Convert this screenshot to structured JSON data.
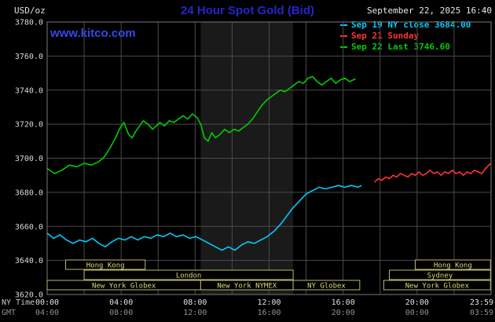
{
  "header": {
    "units_label": "USD/oz",
    "title": "24 Hour Spot Gold (Bid)",
    "title_color": "#2525cc",
    "datetime": "September 22, 2025 16:40",
    "watermark": "www.kitco.com",
    "watermark_color": "#3448ee"
  },
  "legend": {
    "items": [
      {
        "label": "Sep 19 NY close 3684.00",
        "color": "#00ccff"
      },
      {
        "label": "Sep 21 Sunday",
        "color": "#ff3232"
      },
      {
        "label": "Sep 22 Last 3746.60",
        "color": "#00cc00"
      }
    ]
  },
  "axis_captions": {
    "ny": "NY Time",
    "gmt": "GMT"
  },
  "chart_data": {
    "type": "line",
    "title": "24 Hour Spot Gold (Bid)",
    "ylabel": "USD/oz",
    "ylim": [
      3620,
      3780
    ],
    "y_tick_step": 20,
    "y_tick_format_decimals": 1,
    "xlim_hours": [
      0,
      24
    ],
    "grid": true,
    "grid_color": "#4a4a4a",
    "frame_color": "#7a7a7a",
    "tick_color": "#d9d9d9",
    "x_tick_color_ny": "#e0e0e0",
    "x_tick_color_gmt": "#8f8f8f",
    "session_border_color": "#b9b96e",
    "session_text_color": "#d8d883",
    "band": {
      "start": 8.3,
      "end": 13.3,
      "color": "#1a1a1a"
    },
    "x_ticks": [
      {
        "h": 0,
        "ny": "00:00",
        "gmt": "04:00"
      },
      {
        "h": 4,
        "ny": "04:00",
        "gmt": "08:00"
      },
      {
        "h": 8,
        "ny": "08:00",
        "gmt": "12:00"
      },
      {
        "h": 12,
        "ny": "12:00",
        "gmt": "16:00"
      },
      {
        "h": 16,
        "ny": "16:00",
        "gmt": "20:00"
      },
      {
        "h": 20,
        "ny": "20:00",
        "gmt": "00:00"
      },
      {
        "h": 23.983,
        "ny": "23:59",
        "gmt": "03:59"
      }
    ],
    "sessions": [
      {
        "row": 1,
        "start": 1.0,
        "end": 5.3,
        "label": "Hong Kong"
      },
      {
        "row": 1,
        "start": 19.9,
        "end": 23.97,
        "label": "Hong Kong"
      },
      {
        "row": 2,
        "start": 2.0,
        "end": 13.3,
        "label": "London"
      },
      {
        "row": 2,
        "start": 18.5,
        "end": 23.97,
        "label": "Sydney"
      },
      {
        "row": 3,
        "start": 0.0,
        "end": 8.3,
        "label": "New York Globex"
      },
      {
        "row": 3,
        "start": 8.3,
        "end": 13.3,
        "label": "New York NYMEX"
      },
      {
        "row": 3,
        "start": 13.3,
        "end": 16.9,
        "label": "NY Globex"
      },
      {
        "row": 3,
        "start": 18.2,
        "end": 23.97,
        "label": "New York Globex"
      }
    ],
    "series": [
      {
        "name": "Sep 19 NY close",
        "color": "#00ccff",
        "points": [
          [
            0,
            3656
          ],
          [
            0.35,
            3653
          ],
          [
            0.7,
            3655
          ],
          [
            1.05,
            3652
          ],
          [
            1.4,
            3650
          ],
          [
            1.75,
            3652
          ],
          [
            2.1,
            3651
          ],
          [
            2.45,
            3653
          ],
          [
            2.8,
            3650
          ],
          [
            3.15,
            3648
          ],
          [
            3.5,
            3651
          ],
          [
            3.85,
            3653
          ],
          [
            4.2,
            3652
          ],
          [
            4.55,
            3654
          ],
          [
            4.9,
            3652
          ],
          [
            5.25,
            3654
          ],
          [
            5.6,
            3653
          ],
          [
            5.95,
            3655
          ],
          [
            6.3,
            3654
          ],
          [
            6.65,
            3656
          ],
          [
            7.0,
            3654
          ],
          [
            7.35,
            3655
          ],
          [
            7.7,
            3653
          ],
          [
            8.05,
            3654
          ],
          [
            8.4,
            3652
          ],
          [
            8.75,
            3650
          ],
          [
            9.1,
            3648
          ],
          [
            9.45,
            3646
          ],
          [
            9.8,
            3648
          ],
          [
            10.15,
            3646
          ],
          [
            10.5,
            3649
          ],
          [
            10.85,
            3651
          ],
          [
            11.2,
            3650
          ],
          [
            11.55,
            3652
          ],
          [
            11.9,
            3654
          ],
          [
            12.25,
            3657
          ],
          [
            12.6,
            3661
          ],
          [
            12.95,
            3666
          ],
          [
            13.3,
            3671
          ],
          [
            13.65,
            3675
          ],
          [
            14.0,
            3679
          ],
          [
            14.35,
            3681
          ],
          [
            14.7,
            3683
          ],
          [
            15.05,
            3682
          ],
          [
            15.4,
            3683
          ],
          [
            15.75,
            3684
          ],
          [
            16.1,
            3683
          ],
          [
            16.45,
            3684
          ],
          [
            16.8,
            3683
          ],
          [
            17.0,
            3684
          ]
        ]
      },
      {
        "name": "Sep 21 Sunday",
        "color": "#ff3232",
        "points": [
          [
            17.7,
            3686
          ],
          [
            17.9,
            3688
          ],
          [
            18.1,
            3687
          ],
          [
            18.3,
            3689
          ],
          [
            18.5,
            3688
          ],
          [
            18.7,
            3690
          ],
          [
            18.9,
            3689
          ],
          [
            19.1,
            3691
          ],
          [
            19.3,
            3690
          ],
          [
            19.5,
            3689
          ],
          [
            19.7,
            3691
          ],
          [
            19.9,
            3690
          ],
          [
            20.1,
            3692
          ],
          [
            20.3,
            3690
          ],
          [
            20.5,
            3691
          ],
          [
            20.7,
            3693
          ],
          [
            20.9,
            3691
          ],
          [
            21.1,
            3692
          ],
          [
            21.3,
            3690
          ],
          [
            21.5,
            3692
          ],
          [
            21.7,
            3691
          ],
          [
            21.9,
            3693
          ],
          [
            22.1,
            3691
          ],
          [
            22.3,
            3692
          ],
          [
            22.5,
            3690
          ],
          [
            22.7,
            3692
          ],
          [
            22.9,
            3691
          ],
          [
            23.1,
            3693
          ],
          [
            23.3,
            3692
          ],
          [
            23.5,
            3691
          ],
          [
            23.7,
            3694
          ],
          [
            23.98,
            3697
          ]
        ]
      },
      {
        "name": "Sep 22 Last",
        "color": "#00cc00",
        "points": [
          [
            0,
            3694
          ],
          [
            0.4,
            3691
          ],
          [
            0.8,
            3693
          ],
          [
            1.2,
            3696
          ],
          [
            1.6,
            3695
          ],
          [
            2.0,
            3697
          ],
          [
            2.4,
            3696
          ],
          [
            2.8,
            3698
          ],
          [
            3.1,
            3701
          ],
          [
            3.4,
            3706
          ],
          [
            3.7,
            3712
          ],
          [
            3.95,
            3718
          ],
          [
            4.15,
            3721
          ],
          [
            4.4,
            3714
          ],
          [
            4.6,
            3712
          ],
          [
            4.8,
            3716
          ],
          [
            5.0,
            3719
          ],
          [
            5.2,
            3722
          ],
          [
            5.45,
            3720
          ],
          [
            5.7,
            3717
          ],
          [
            5.9,
            3719
          ],
          [
            6.1,
            3721
          ],
          [
            6.35,
            3719
          ],
          [
            6.6,
            3722
          ],
          [
            6.85,
            3721
          ],
          [
            7.1,
            3723
          ],
          [
            7.35,
            3725
          ],
          [
            7.6,
            3723
          ],
          [
            7.85,
            3726
          ],
          [
            8.1,
            3724
          ],
          [
            8.3,
            3720
          ],
          [
            8.5,
            3712
          ],
          [
            8.7,
            3710
          ],
          [
            8.9,
            3715
          ],
          [
            9.1,
            3712
          ],
          [
            9.35,
            3714
          ],
          [
            9.6,
            3717
          ],
          [
            9.85,
            3715
          ],
          [
            10.1,
            3717
          ],
          [
            10.35,
            3716
          ],
          [
            10.6,
            3718
          ],
          [
            10.85,
            3720
          ],
          [
            11.1,
            3723
          ],
          [
            11.35,
            3727
          ],
          [
            11.6,
            3731
          ],
          [
            11.85,
            3734
          ],
          [
            12.1,
            3736
          ],
          [
            12.35,
            3738
          ],
          [
            12.6,
            3740
          ],
          [
            12.85,
            3739
          ],
          [
            13.1,
            3741
          ],
          [
            13.35,
            3743
          ],
          [
            13.6,
            3745
          ],
          [
            13.85,
            3744
          ],
          [
            14.1,
            3747
          ],
          [
            14.35,
            3748
          ],
          [
            14.6,
            3745
          ],
          [
            14.85,
            3743
          ],
          [
            15.1,
            3745
          ],
          [
            15.35,
            3747
          ],
          [
            15.6,
            3744
          ],
          [
            15.85,
            3746
          ],
          [
            16.1,
            3747
          ],
          [
            16.35,
            3745
          ],
          [
            16.67,
            3746.6
          ]
        ]
      }
    ]
  }
}
